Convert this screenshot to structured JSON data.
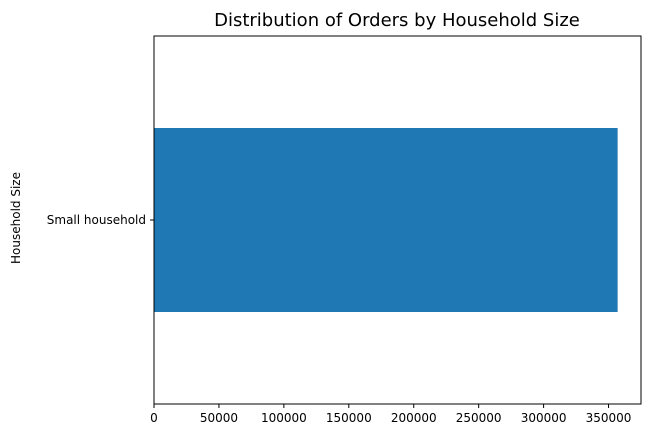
{
  "chart_data": {
    "type": "bar",
    "orientation": "horizontal",
    "title": "Distribution of Orders by Household Size",
    "xlabel": "",
    "ylabel": "Household Size",
    "categories": [
      "Small household"
    ],
    "values": [
      357000
    ],
    "xlim": [
      0,
      375000
    ],
    "xticks": [
      0,
      50000,
      100000,
      150000,
      200000,
      250000,
      300000,
      350000
    ],
    "xtick_labels": [
      "0",
      "50000",
      "100000",
      "150000",
      "200000",
      "250000",
      "300000",
      "350000"
    ],
    "bar_color": "#1f77b4",
    "grid": false,
    "legend": "none"
  }
}
